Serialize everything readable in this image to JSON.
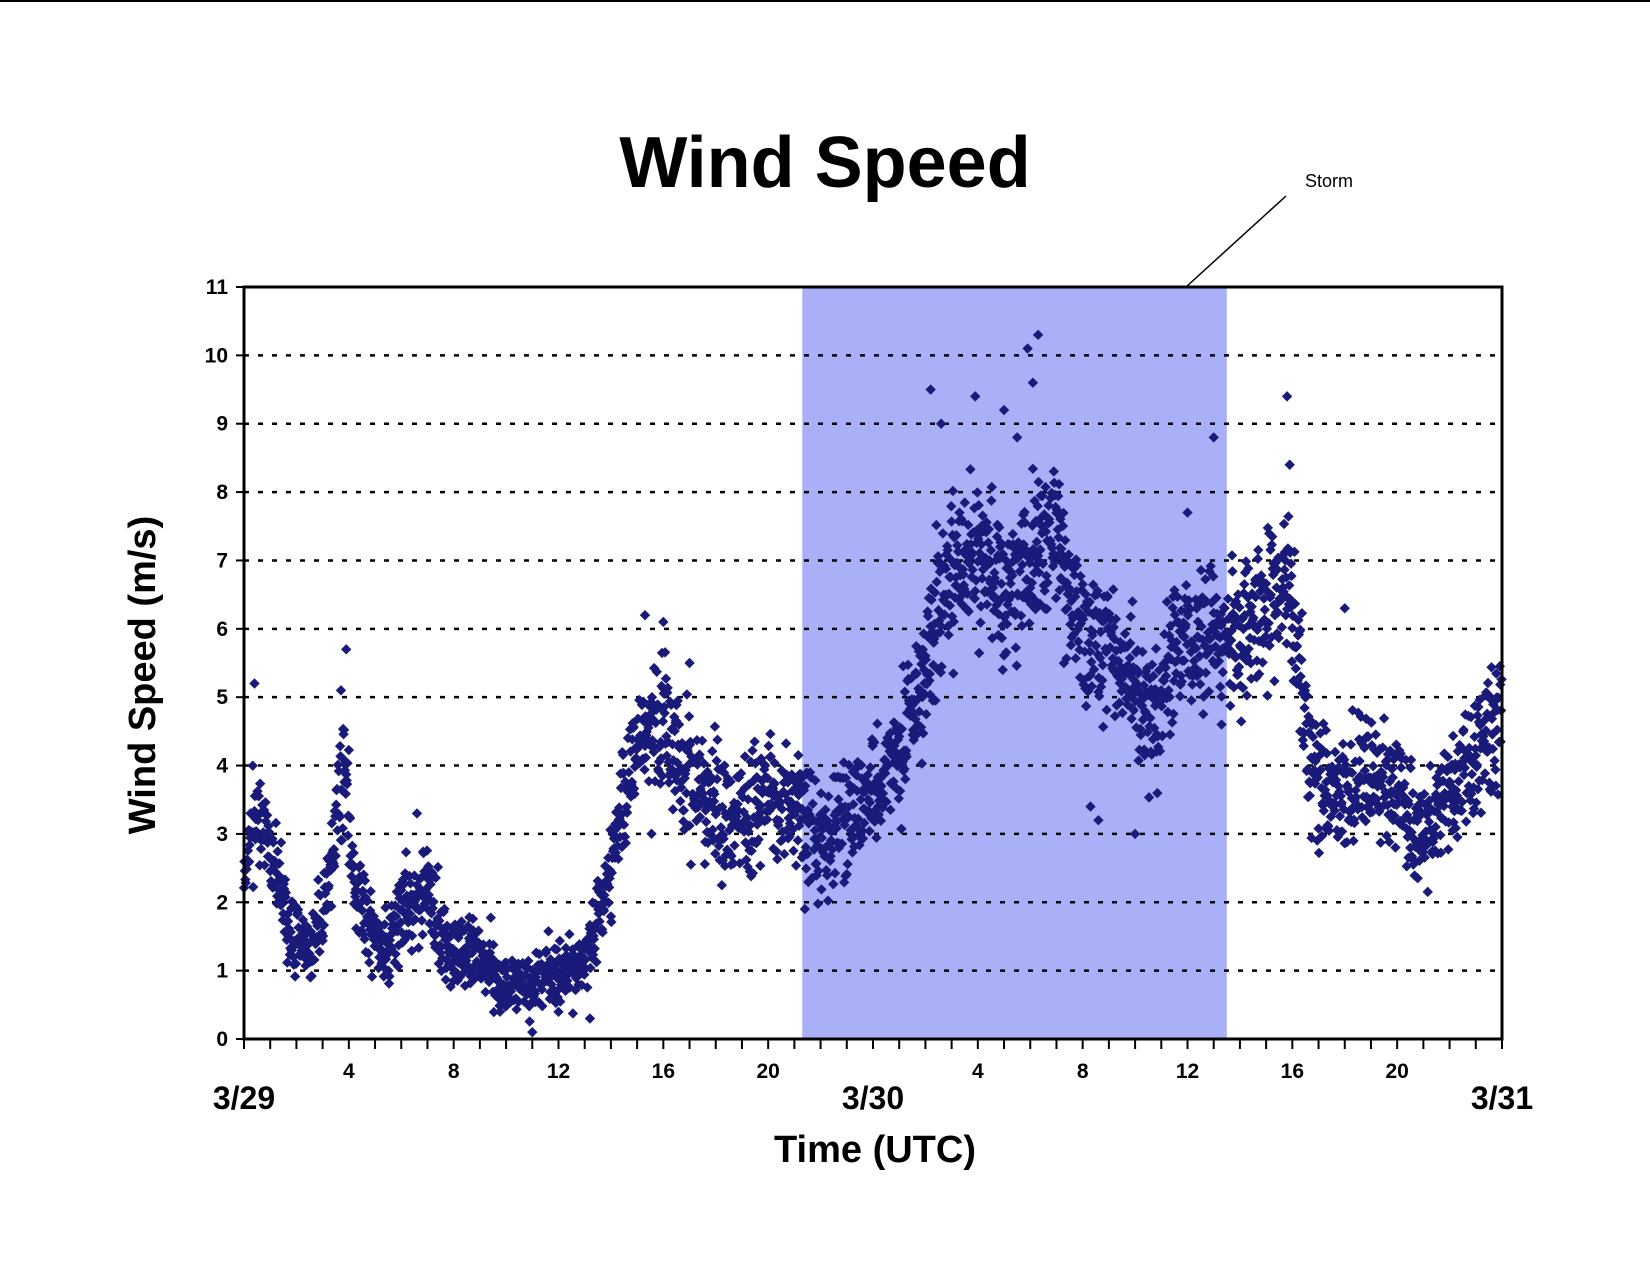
{
  "chart_data": {
    "type": "scatter",
    "title": "Wind Speed",
    "xlabel": "Time (UTC)",
    "ylabel": "Wind Speed (m/s)",
    "x_unit": "hours since 3/29 00:00 UTC",
    "xlim": [
      0,
      48
    ],
    "ylim": [
      0,
      11
    ],
    "yticks": [
      0,
      1,
      2,
      3,
      4,
      5,
      6,
      7,
      8,
      9,
      10,
      11
    ],
    "hour_tick_labels": [
      {
        "hour": 4,
        "label": "4"
      },
      {
        "hour": 8,
        "label": "8"
      },
      {
        "hour": 12,
        "label": "12"
      },
      {
        "hour": 16,
        "label": "16"
      },
      {
        "hour": 20,
        "label": "20"
      },
      {
        "hour": 28,
        "label": "4"
      },
      {
        "hour": 32,
        "label": "8"
      },
      {
        "hour": 36,
        "label": "12"
      },
      {
        "hour": 40,
        "label": "16"
      },
      {
        "hour": 44,
        "label": "20"
      }
    ],
    "date_labels": [
      {
        "hour": 0,
        "label": "3/29"
      },
      {
        "hour": 24,
        "label": "3/30"
      },
      {
        "hour": 48,
        "label": "3/31"
      }
    ],
    "grid": "horizontal dotted",
    "marker_color": "#1a1a7a",
    "shade_color": "#aab0f8",
    "storm": {
      "label": "Storm",
      "start_hour": 21.3,
      "end_hour": 37.5
    },
    "series_profile": [
      [
        0,
        2.6
      ],
      [
        0.5,
        3.1
      ],
      [
        1,
        2.7
      ],
      [
        1.5,
        2.0
      ],
      [
        2,
        1.5
      ],
      [
        2.5,
        1.3
      ],
      [
        3,
        1.8
      ],
      [
        3.5,
        3.0
      ],
      [
        3.8,
        4.3
      ],
      [
        4.2,
        2.3
      ],
      [
        5,
        1.4
      ],
      [
        5.5,
        1.3
      ],
      [
        6,
        1.9
      ],
      [
        7,
        2.2
      ],
      [
        7.5,
        1.6
      ],
      [
        8,
        1.2
      ],
      [
        9,
        1.3
      ],
      [
        10,
        0.7
      ],
      [
        11,
        0.8
      ],
      [
        12,
        0.9
      ],
      [
        13,
        1.2
      ],
      [
        13.5,
        1.7
      ],
      [
        14,
        2.5
      ],
      [
        14.5,
        3.4
      ],
      [
        15,
        4.4
      ],
      [
        16,
        4.5
      ],
      [
        17,
        3.7
      ],
      [
        18,
        3.3
      ],
      [
        19,
        3.1
      ],
      [
        20,
        3.5
      ],
      [
        21,
        3.4
      ],
      [
        22,
        2.9
      ],
      [
        23,
        3.2
      ],
      [
        24,
        3.6
      ],
      [
        25,
        4.2
      ],
      [
        26,
        5.1
      ],
      [
        26.5,
        6.4
      ],
      [
        27,
        6.7
      ],
      [
        28,
        7.2
      ],
      [
        29,
        6.5
      ],
      [
        30,
        7.0
      ],
      [
        31,
        7.3
      ],
      [
        32,
        5.8
      ],
      [
        33,
        5.8
      ],
      [
        34,
        5.1
      ],
      [
        35,
        4.9
      ],
      [
        36,
        6.0
      ],
      [
        37,
        5.9
      ],
      [
        38,
        5.7
      ],
      [
        39,
        6.3
      ],
      [
        39.8,
        6.8
      ],
      [
        40.3,
        5.5
      ],
      [
        40.7,
        3.9
      ],
      [
        42,
        3.5
      ],
      [
        43,
        3.8
      ],
      [
        44,
        3.7
      ],
      [
        45,
        3.0
      ],
      [
        46,
        3.5
      ],
      [
        47,
        4.3
      ],
      [
        48,
        4.8
      ]
    ],
    "outliers": [
      [
        0.4,
        5.2
      ],
      [
        3.9,
        5.7
      ],
      [
        3.7,
        5.1
      ],
      [
        6.6,
        3.3
      ],
      [
        15.3,
        6.2
      ],
      [
        16.0,
        6.1
      ],
      [
        17.0,
        5.5
      ],
      [
        26.2,
        9.5
      ],
      [
        26.6,
        9.0
      ],
      [
        27.9,
        9.4
      ],
      [
        29.0,
        9.2
      ],
      [
        29.9,
        10.1
      ],
      [
        30.3,
        10.3
      ],
      [
        30.1,
        9.6
      ],
      [
        29.5,
        8.8
      ],
      [
        37.0,
        8.8
      ],
      [
        39.8,
        9.4
      ],
      [
        39.9,
        8.4
      ],
      [
        32.3,
        3.4
      ],
      [
        32.6,
        3.2
      ],
      [
        34.0,
        3.0
      ],
      [
        42.0,
        6.3
      ],
      [
        36.0,
        7.7
      ],
      [
        37.3,
        4.6
      ],
      [
        40.3,
        4.5
      ],
      [
        21.4,
        1.9
      ],
      [
        11.0,
        0.1
      ],
      [
        13.2,
        0.3
      ]
    ]
  }
}
